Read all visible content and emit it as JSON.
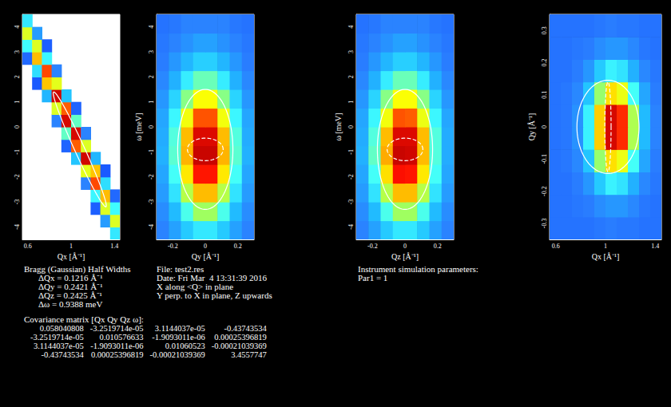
{
  "chart_data": [
    {
      "type": "heatmap",
      "xlabel": "Qx [Å⁻¹]",
      "xlim": [
        0.55,
        1.45
      ],
      "xticks": [
        0.6,
        1,
        1.4
      ],
      "ylim": [
        -4.5,
        4.5
      ],
      "yticks": [
        -4,
        -3,
        -2,
        -1,
        0,
        1,
        2,
        3,
        4
      ],
      "color_range": [
        0,
        1
      ],
      "cells": {
        "x": [
          0.595,
          0.685,
          0.775,
          0.865,
          0.955,
          1.045,
          1.135,
          1.225,
          1.315,
          1.405
        ],
        "y": [
          -4.25,
          -3.75,
          -3.25,
          -2.75,
          -2.25,
          -1.75,
          -1.25,
          -0.75,
          -0.25,
          0.25,
          0.75,
          1.25,
          1.75,
          2.25,
          2.75,
          3.25,
          3.75,
          4.25
        ],
        "values": [
          [
            null,
            null,
            null,
            null,
            null,
            null,
            null,
            null,
            null,
            0.33
          ],
          [
            null,
            null,
            null,
            null,
            null,
            null,
            null,
            null,
            0.18,
            0.58
          ],
          [
            null,
            null,
            null,
            null,
            null,
            null,
            null,
            0.06,
            0.58,
            0.37
          ],
          [
            null,
            null,
            null,
            null,
            null,
            null,
            null,
            0.36,
            0.7,
            0.08
          ],
          [
            null,
            null,
            null,
            null,
            null,
            null,
            0.13,
            0.82,
            0.31,
            null
          ],
          [
            null,
            null,
            null,
            null,
            null,
            null,
            0.59,
            0.69,
            0.05,
            null
          ],
          [
            null,
            null,
            null,
            null,
            null,
            0.26,
            0.95,
            0.23,
            null,
            null
          ],
          [
            null,
            null,
            null,
            null,
            0.07,
            0.8,
            0.58,
            null,
            null,
            null
          ],
          [
            null,
            null,
            null,
            null,
            0.42,
            0.94,
            0.13,
            null,
            null,
            null
          ],
          [
            null,
            null,
            null,
            0.13,
            0.94,
            0.42,
            null,
            null,
            null,
            null
          ],
          [
            null,
            null,
            null,
            0.58,
            0.8,
            0.07,
            null,
            null,
            null,
            null
          ],
          [
            null,
            null,
            0.23,
            0.95,
            0.26,
            null,
            null,
            null,
            null,
            null
          ],
          [
            null,
            0.05,
            0.69,
            0.59,
            null,
            null,
            null,
            null,
            null,
            null
          ],
          [
            null,
            0.31,
            0.82,
            0.13,
            null,
            null,
            null,
            null,
            null,
            null
          ],
          [
            0.08,
            0.7,
            0.36,
            null,
            null,
            null,
            null,
            null,
            null,
            null
          ],
          [
            0.37,
            0.58,
            0.06,
            null,
            null,
            null,
            null,
            null,
            null,
            null
          ],
          [
            0.58,
            0.18,
            null,
            null,
            null,
            null,
            null,
            null,
            null,
            null
          ],
          [
            0.33,
            null,
            null,
            null,
            null,
            null,
            null,
            null,
            null,
            null
          ]
        ]
      },
      "ellipses": [
        {
          "center": [
            1.08,
            -0.9
          ],
          "u": [
            -0.24,
            2.3
          ],
          "v": [
            0.05,
            0
          ],
          "color": "#ffffff",
          "line_style": "solid"
        }
      ]
    },
    {
      "type": "heatmap",
      "xlabel": "Qy [Å⁻¹]",
      "ylabel": "ω [meV]",
      "xlim": [
        -0.3,
        0.3
      ],
      "xticks": [
        -0.2,
        0,
        0.2
      ],
      "ylim": [
        -4.5,
        4.5
      ],
      "yticks": [
        -4,
        -3,
        -2,
        -1,
        0,
        1,
        2,
        3,
        4
      ],
      "color_range": [
        0,
        1
      ],
      "cells": {
        "x": [
          -0.2625,
          -0.1875,
          -0.1125,
          -0.0375,
          0.0375,
          0.1125,
          0.1875,
          0.2625
        ],
        "y": [
          -4.125,
          -3.375,
          -2.625,
          -1.875,
          -1.125,
          -0.375,
          0.375,
          1.125,
          1.875,
          2.625,
          3.375,
          4.125
        ],
        "values": [
          [
            0.13,
            0.19,
            0.27,
            0.33,
            0.33,
            0.27,
            0.19,
            0.13
          ],
          [
            0.15,
            0.24,
            0.39,
            0.5,
            0.5,
            0.39,
            0.24,
            0.15
          ],
          [
            0.18,
            0.32,
            0.53,
            0.7,
            0.7,
            0.53,
            0.32,
            0.18
          ],
          [
            0.2,
            0.38,
            0.65,
            0.87,
            0.87,
            0.65,
            0.38,
            0.2
          ],
          [
            0.22,
            0.41,
            0.71,
            0.96,
            0.96,
            0.71,
            0.41,
            0.22
          ],
          [
            0.21,
            0.4,
            0.7,
            0.93,
            0.93,
            0.7,
            0.4,
            0.21
          ],
          [
            0.2,
            0.36,
            0.61,
            0.81,
            0.81,
            0.61,
            0.36,
            0.2
          ],
          [
            0.17,
            0.29,
            0.47,
            0.62,
            0.62,
            0.47,
            0.29,
            0.17
          ],
          [
            0.14,
            0.22,
            0.34,
            0.43,
            0.43,
            0.34,
            0.22,
            0.14
          ],
          [
            0.12,
            0.17,
            0.23,
            0.28,
            0.28,
            0.23,
            0.17,
            0.12
          ],
          [
            0.11,
            0.13,
            0.16,
            0.19,
            0.19,
            0.16,
            0.13,
            0.11
          ],
          [
            0.1,
            0.11,
            0.13,
            0.13,
            0.13,
            0.13,
            0.11,
            0.1
          ]
        ]
      },
      "ellipses": [
        {
          "center": [
            0,
            -0.9
          ],
          "u": [
            0.17,
            0
          ],
          "v": [
            0,
            2.4
          ],
          "color": "#ffffff",
          "line_style": "solid"
        },
        {
          "center": [
            0,
            -0.9
          ],
          "u": [
            0.11,
            0
          ],
          "v": [
            0,
            0.45
          ],
          "color": "#ffffff",
          "line_style": "dashed"
        }
      ]
    },
    {
      "type": "heatmap",
      "xlabel": "Qz [Å⁻¹]",
      "ylabel": "ω [meV]",
      "xlim": [
        -0.3,
        0.3
      ],
      "xticks": [
        -0.2,
        0,
        0.2
      ],
      "ylim": [
        -4.5,
        4.5
      ],
      "yticks": [
        -4,
        -3,
        -2,
        -1,
        0,
        1,
        2,
        3,
        4
      ],
      "color_range": [
        0,
        1
      ],
      "cells": {
        "x": [
          -0.2625,
          -0.1875,
          -0.1125,
          -0.0375,
          0.0375,
          0.1125,
          0.1875,
          0.2625
        ],
        "y": [
          -4.125,
          -3.375,
          -2.625,
          -1.875,
          -1.125,
          -0.375,
          0.375,
          1.125,
          1.875,
          2.625,
          3.375,
          4.125
        ],
        "values": [
          [
            0.13,
            0.19,
            0.27,
            0.33,
            0.33,
            0.27,
            0.19,
            0.13
          ],
          [
            0.15,
            0.24,
            0.39,
            0.5,
            0.5,
            0.39,
            0.24,
            0.15
          ],
          [
            0.18,
            0.32,
            0.53,
            0.7,
            0.7,
            0.53,
            0.32,
            0.18
          ],
          [
            0.2,
            0.38,
            0.66,
            0.88,
            0.87,
            0.65,
            0.38,
            0.2
          ],
          [
            0.22,
            0.42,
            0.72,
            0.96,
            0.95,
            0.7,
            0.4,
            0.21
          ],
          [
            0.21,
            0.4,
            0.7,
            0.93,
            0.93,
            0.7,
            0.4,
            0.21
          ],
          [
            0.2,
            0.36,
            0.61,
            0.81,
            0.8,
            0.6,
            0.36,
            0.2
          ],
          [
            0.17,
            0.29,
            0.47,
            0.62,
            0.62,
            0.47,
            0.29,
            0.17
          ],
          [
            0.14,
            0.22,
            0.34,
            0.43,
            0.43,
            0.34,
            0.22,
            0.14
          ],
          [
            0.12,
            0.17,
            0.23,
            0.28,
            0.28,
            0.23,
            0.17,
            0.12
          ],
          [
            0.11,
            0.13,
            0.16,
            0.19,
            0.19,
            0.16,
            0.13,
            0.11
          ],
          [
            0.1,
            0.11,
            0.13,
            0.13,
            0.13,
            0.13,
            0.11,
            0.1
          ]
        ]
      },
      "ellipses": [
        {
          "center": [
            0,
            -0.9
          ],
          "u": [
            0.17,
            0
          ],
          "v": [
            0,
            2.4
          ],
          "color": "#ffffff",
          "line_style": "solid"
        },
        {
          "center": [
            0,
            -0.9
          ],
          "u": [
            0.11,
            0
          ],
          "v": [
            0,
            0.45
          ],
          "color": "#ffffff",
          "line_style": "dashed"
        }
      ]
    },
    {
      "type": "heatmap",
      "xlabel": "Qx [Å⁻¹]",
      "ylabel": "Qy [Å⁻¹]",
      "xlim": [
        0.55,
        1.45
      ],
      "xticks": [
        0.6,
        1,
        1.4
      ],
      "ylim": [
        -0.35,
        0.35
      ],
      "yticks": [
        -0.3,
        -0.2,
        -0.1,
        0,
        0.1,
        0.2,
        0.3
      ],
      "color_range": [
        0,
        1
      ],
      "cells": {
        "x": [
          0.595,
          0.685,
          0.775,
          0.865,
          0.955,
          1.045,
          1.135,
          1.225,
          1.315,
          1.405
        ],
        "y": [
          -0.315,
          -0.245,
          -0.175,
          -0.105,
          -0.035,
          0.035,
          0.105,
          0.175,
          0.245,
          0.315
        ],
        "values": [
          [
            0.1,
            0.1,
            0.1,
            0.1,
            0.11,
            0.12,
            0.11,
            0.11,
            0.1,
            0.1
          ],
          [
            0.1,
            0.1,
            0.11,
            0.12,
            0.15,
            0.17,
            0.17,
            0.14,
            0.11,
            0.1
          ],
          [
            0.1,
            0.1,
            0.12,
            0.17,
            0.27,
            0.35,
            0.32,
            0.22,
            0.14,
            0.11
          ],
          [
            0.1,
            0.11,
            0.14,
            0.26,
            0.49,
            0.66,
            0.6,
            0.38,
            0.2,
            0.12
          ],
          [
            0.1,
            0.11,
            0.16,
            0.35,
            0.68,
            0.94,
            0.85,
            0.52,
            0.24,
            0.13
          ],
          [
            0.1,
            0.11,
            0.16,
            0.35,
            0.68,
            0.94,
            0.85,
            0.52,
            0.24,
            0.13
          ],
          [
            0.1,
            0.11,
            0.14,
            0.26,
            0.49,
            0.66,
            0.6,
            0.38,
            0.2,
            0.12
          ],
          [
            0.1,
            0.1,
            0.12,
            0.17,
            0.27,
            0.35,
            0.32,
            0.22,
            0.14,
            0.11
          ],
          [
            0.1,
            0.1,
            0.11,
            0.12,
            0.15,
            0.17,
            0.17,
            0.14,
            0.11,
            0.1
          ],
          [
            0.1,
            0.1,
            0.1,
            0.1,
            0.11,
            0.12,
            0.11,
            0.11,
            0.1,
            0.1
          ]
        ]
      },
      "ellipses": [
        {
          "center": [
            1.02,
            0
          ],
          "u": [
            0.25,
            0
          ],
          "v": [
            0,
            0.145
          ],
          "color": "#ffffff",
          "line_style": "solid"
        },
        {
          "center": [
            1.02,
            0
          ],
          "u": [
            0.025,
            0
          ],
          "v": [
            0,
            0.14
          ],
          "color": "#ffffff",
          "line_style": "dashed"
        }
      ]
    }
  ],
  "texts": {
    "half_widths": {
      "title": "Bragg (Gaussian) Half Widths",
      "lines": [
        "ΔQx = 0.1216 Å⁻¹",
        "ΔQy = 0.2421 Å⁻¹",
        "ΔQz = 0.2425 Å⁻¹",
        "Δω = 0.9388 meV"
      ]
    },
    "file_info": [
      "File: test2.res",
      "Date: Fri Mar  4 13:31:39 2016",
      "X along <Q> in plane",
      "Y perp. to X in plane, Z upwards"
    ],
    "parameters": [
      "Instrument simulation parameters:",
      "Par1 = 1"
    ],
    "covariance": {
      "title": "Covariance matrix [Qx Qy Qz ω]:",
      "rows": [
        [
          "0.058040808",
          "-3.2519714e-05",
          "3.1144037e-05",
          "-0.43743534"
        ],
        [
          "-3.2519714e-05",
          "0.010576633",
          "-1.9093011e-06",
          "0.00025396819"
        ],
        [
          "3.1144037e-05",
          "-1.9093011e-06",
          "0.01060523",
          "-0.00021039369"
        ],
        [
          "-0.43743534",
          "0.00025396819",
          "-0.00021039369",
          "3.4557747"
        ]
      ]
    }
  }
}
